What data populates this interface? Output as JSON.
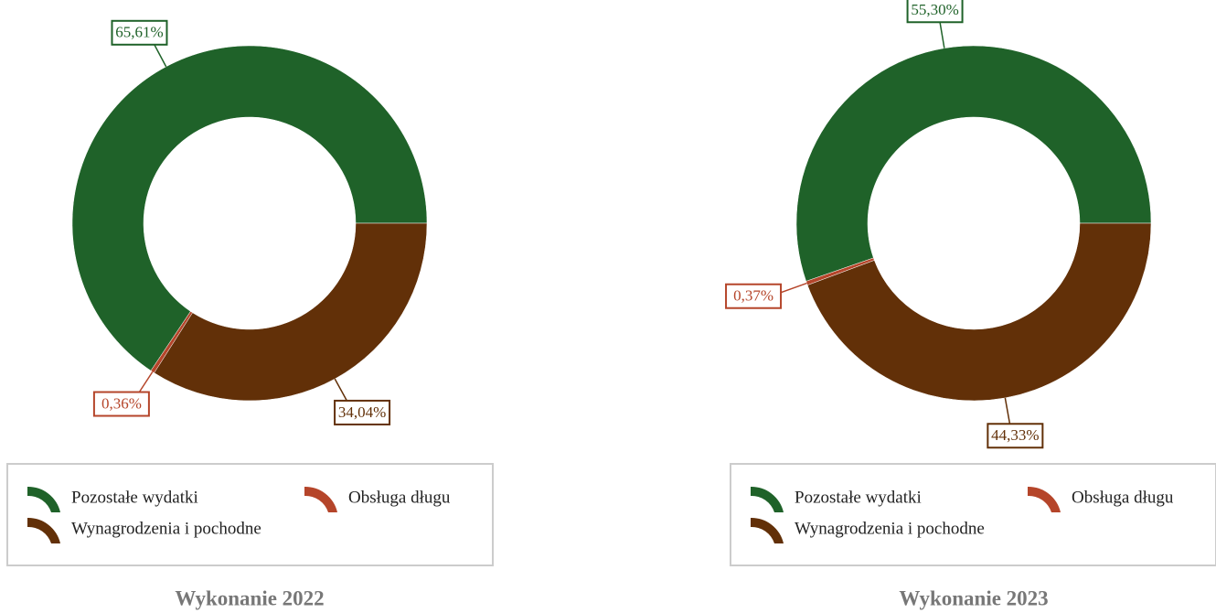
{
  "chart_data": [
    {
      "type": "donut",
      "title": "Wykonanie 2022",
      "categories": [
        "Pozostałe wydatki",
        "Obsługa długu",
        "Wynagrodzenia i pochodne"
      ],
      "values": [
        65.61,
        0.36,
        34.04
      ],
      "value_labels": [
        "65,61%",
        "0,36%",
        "34,04%"
      ],
      "colors": [
        "#1f6229",
        "#b5452a",
        "#623008"
      ]
    },
    {
      "type": "donut",
      "title": "Wykonanie 2023",
      "categories": [
        "Pozostałe wydatki",
        "Obsługa długu",
        "Wynagrodzenia i pochodne"
      ],
      "values": [
        55.3,
        0.37,
        44.33
      ],
      "value_labels": [
        "55,30%",
        "0,37%",
        "44,33%"
      ],
      "colors": [
        "#1f6229",
        "#b5452a",
        "#623008"
      ]
    }
  ]
}
